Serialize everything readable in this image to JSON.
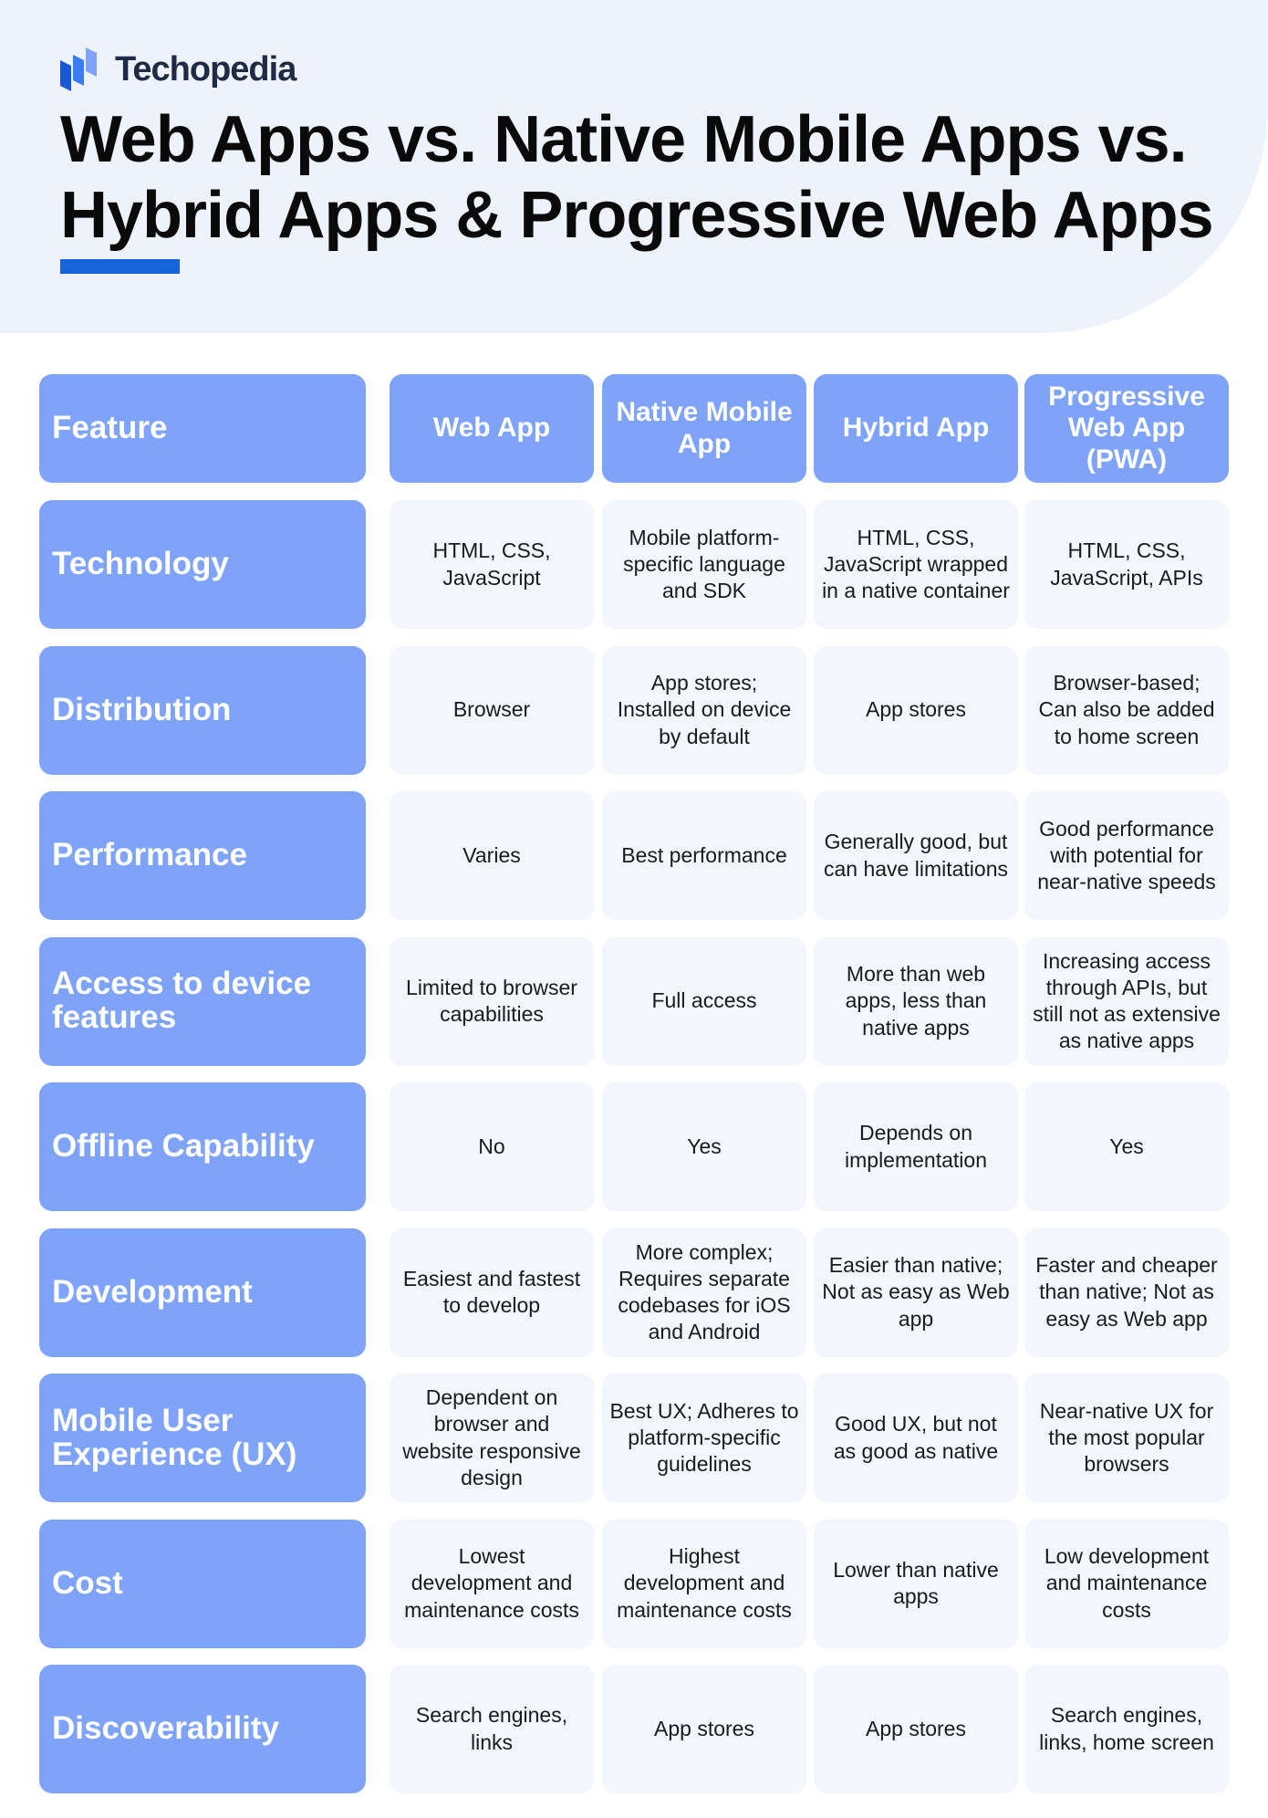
{
  "header": {
    "logo": "Techopedia",
    "title_line1": "Web Apps vs. Native Mobile Apps vs.",
    "title_line2": "Hybrid Apps & Progressive Web Apps"
  },
  "table": {
    "header": [
      "Feature",
      "Web App",
      "Native Mobile App",
      "Hybrid App",
      "Progressive Web App (PWA)"
    ],
    "rows": [
      {
        "feature": "Technology",
        "cells": [
          "HTML, CSS, JavaScript",
          "Mobile platform-specific language and SDK",
          "HTML, CSS, JavaScript wrapped in a native container",
          "HTML, CSS, JavaScript, APIs"
        ]
      },
      {
        "feature": "Distribution",
        "cells": [
          "Browser",
          "App stores; Installed on device by default",
          "App stores",
          "Browser-based; Can also be added to home screen"
        ]
      },
      {
        "feature": "Performance",
        "cells": [
          "Varies",
          "Best performance",
          "Generally good, but can have limitations",
          "Good performance with potential for near-native speeds"
        ]
      },
      {
        "feature": "Access to device features",
        "cells": [
          "Limited to browser capabilities",
          "Full access",
          "More than web apps, less than native apps",
          "Increasing access through APIs, but still not as extensive as native apps"
        ]
      },
      {
        "feature": "Offline Capability",
        "cells": [
          "No",
          "Yes",
          "Depends on implementation",
          "Yes"
        ]
      },
      {
        "feature": "Development",
        "cells": [
          "Easiest and fastest to develop",
          "More complex; Requires separate codebases for iOS and Android",
          "Easier than native; Not as easy as Web app",
          "Faster and cheaper than native; Not as easy as Web app"
        ]
      },
      {
        "feature": "Mobile User Experience (UX)",
        "cells": [
          "Dependent on browser and website responsive design",
          "Best UX; Adheres to platform-specific guidelines",
          "Good UX, but not as good as native",
          "Near-native UX for the most popular browsers"
        ]
      },
      {
        "feature": "Cost",
        "cells": [
          "Lowest development and maintenance costs",
          "Highest development and maintenance costs",
          "Lower than native apps",
          "Low development and maintenance costs"
        ]
      },
      {
        "feature": "Discoverability",
        "cells": [
          "Search engines, links",
          "App stores",
          "App stores",
          "Search engines, links, home screen"
        ]
      }
    ]
  }
}
